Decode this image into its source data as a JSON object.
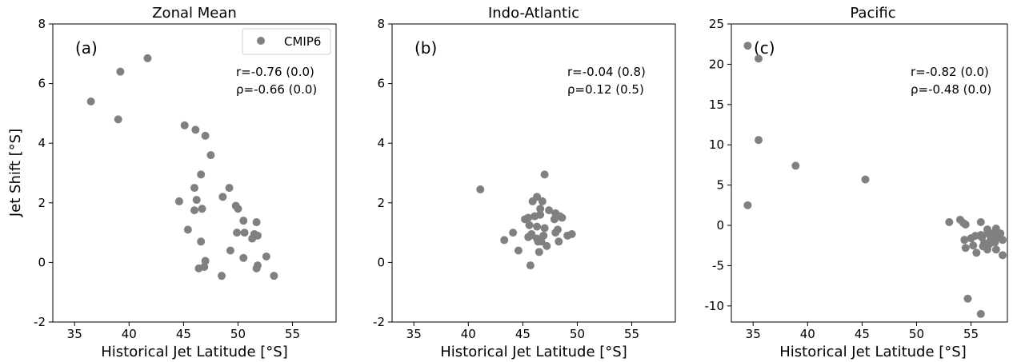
{
  "figure": {
    "ylabel": "Jet Shift [°S]"
  },
  "chart_data": [
    {
      "type": "scatter",
      "title": "Zonal Mean",
      "panel_label": "(a)",
      "xlabel": "Historical Jet Latitude [°S]",
      "ylabel": "Jet Shift [°S]",
      "xlim": [
        33,
        59
      ],
      "ylim": [
        -2,
        8
      ],
      "xticks": [
        35,
        40,
        45,
        50,
        55
      ],
      "yticks": [
        -2,
        0,
        2,
        4,
        6,
        8
      ],
      "grid": false,
      "legend": {
        "entries": [
          "CMIP6"
        ],
        "placement": "top-right"
      },
      "stats": [
        "r=-0.76 (0.0)",
        "ρ=-0.66 (0.0)"
      ],
      "marker_color": "#808080",
      "series": [
        {
          "name": "CMIP6",
          "x": [
            36.5,
            39.2,
            39.0,
            41.7,
            45.1,
            46.1,
            47.0,
            47.5,
            46.6,
            46.0,
            46.2,
            46.7,
            46.0,
            44.6,
            49.2,
            48.6,
            49.8,
            50.0,
            50.5,
            51.7,
            51.5,
            51.8,
            51.3,
            50.6,
            49.9,
            45.4,
            46.6,
            49.3,
            47.0,
            50.5,
            51.8,
            51.7,
            52.6,
            46.4,
            46.9,
            48.5,
            53.3
          ],
          "y": [
            5.4,
            6.4,
            4.8,
            6.85,
            4.6,
            4.45,
            4.25,
            3.6,
            2.95,
            2.5,
            2.1,
            1.8,
            1.75,
            2.05,
            2.5,
            2.2,
            1.9,
            1.8,
            1.4,
            1.35,
            0.95,
            0.9,
            0.8,
            1.0,
            1.0,
            1.1,
            0.7,
            0.4,
            0.05,
            0.15,
            -0.1,
            -0.2,
            0.2,
            -0.2,
            -0.15,
            -0.45,
            -0.45
          ]
        }
      ]
    },
    {
      "type": "scatter",
      "title": "Indo-Atlantic",
      "panel_label": "(b)",
      "xlabel": "Historical Jet Latitude [°S]",
      "xlim": [
        33,
        59
      ],
      "ylim": [
        -2,
        8
      ],
      "xticks": [
        35,
        40,
        45,
        50,
        55
      ],
      "yticks": [
        -2,
        0,
        2,
        4,
        6,
        8
      ],
      "grid": false,
      "stats": [
        "r=-0.04 (0.8)",
        "ρ=0.12 (0.5)"
      ],
      "marker_color": "#808080",
      "series": [
        {
          "name": "CMIP6",
          "x": [
            41.1,
            47.0,
            46.3,
            45.9,
            46.8,
            46.6,
            47.4,
            48.0,
            48.4,
            48.6,
            47.9,
            46.6,
            46.1,
            45.5,
            45.2,
            44.1,
            45.6,
            46.3,
            47.0,
            48.2,
            48.0,
            49.1,
            49.5,
            45.7,
            46.9,
            46.3,
            46.6,
            45.8,
            45.5,
            43.3,
            46.4,
            46.7,
            47.2,
            48.3,
            44.6,
            46.5,
            45.7
          ],
          "y": [
            2.45,
            2.95,
            2.2,
            2.05,
            2.05,
            1.8,
            1.75,
            1.65,
            1.55,
            1.5,
            1.45,
            1.6,
            1.55,
            1.5,
            1.45,
            1.0,
            1.25,
            1.2,
            1.15,
            1.1,
            1.0,
            0.9,
            0.95,
            0.9,
            0.9,
            0.8,
            0.75,
            0.95,
            0.85,
            0.75,
            0.7,
            0.7,
            0.55,
            0.7,
            0.4,
            0.35,
            -0.1
          ]
        }
      ]
    },
    {
      "type": "scatter",
      "title": "Pacific",
      "panel_label": "(c)",
      "xlabel": "Historical Jet Latitude [°S]",
      "xlim": [
        33,
        59
      ],
      "ylim": [
        -12,
        25
      ],
      "xticks": [
        35,
        40,
        45,
        50,
        55
      ],
      "yticks": [
        -10,
        -5,
        0,
        5,
        10,
        15,
        20,
        25
      ],
      "grid": false,
      "stats": [
        "r=-0.82 (0.0)",
        "ρ=-0.48 (0.0)"
      ],
      "marker_color": "#808080",
      "series": [
        {
          "name": "CMIP6",
          "x": [
            34.5,
            35.5,
            35.5,
            38.9,
            45.3,
            34.5,
            53.0,
            54.0,
            54.5,
            54.3,
            55.9,
            56.5,
            57.3,
            57.0,
            57.7,
            55.4,
            55.9,
            56.0,
            56.8,
            57.5,
            54.4,
            55.0,
            56.2,
            56.7,
            57.2,
            57.9,
            54.5,
            55.2,
            56.1,
            56.5,
            57.3,
            57.9,
            55.5,
            54.7,
            55.9,
            57.0,
            56.5
          ],
          "y": [
            22.3,
            20.7,
            10.6,
            7.4,
            5.7,
            2.5,
            0.4,
            0.7,
            0.1,
            0.3,
            0.4,
            -0.5,
            -0.4,
            -1.0,
            -1.0,
            -1.3,
            -1.2,
            -1.5,
            -1.7,
            -1.5,
            -1.8,
            -1.6,
            -2.2,
            -2.3,
            -2.1,
            -1.8,
            -2.8,
            -2.5,
            -2.6,
            -3.0,
            -3.0,
            -3.7,
            -3.4,
            -9.1,
            -11.0,
            -1.2,
            -1.0
          ]
        }
      ]
    }
  ]
}
